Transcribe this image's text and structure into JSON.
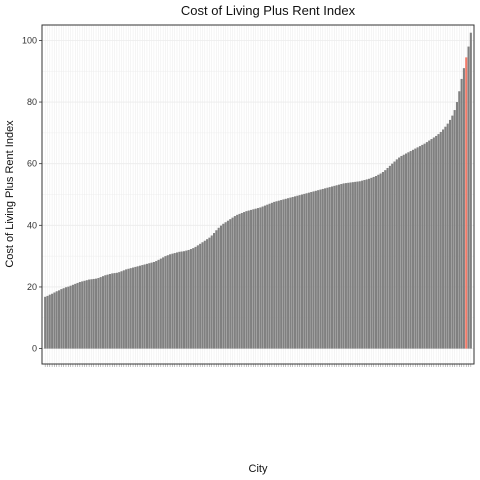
{
  "chart_data": {
    "type": "bar",
    "title": "Cost of Living Plus Rent Index",
    "xlabel": "City",
    "ylabel": "Cost of Living Plus Rent Index",
    "ylim": [
      -5,
      105
    ],
    "yticks": [
      0,
      20,
      40,
      60,
      80,
      100
    ],
    "grid": true,
    "legend": "none",
    "highlight_index": 182,
    "colors": {
      "bar": "#808080",
      "highlight": "#f27b6a",
      "grid": "#ebebeb",
      "panel_border": "#333333"
    },
    "values": [
      16.8,
      17.1,
      17.5,
      17.8,
      18.2,
      18.6,
      18.9,
      19.3,
      19.6,
      19.9,
      20.1,
      20.4,
      20.7,
      21.0,
      21.3,
      21.6,
      21.8,
      22.0,
      22.2,
      22.4,
      22.5,
      22.6,
      22.7,
      22.9,
      23.2,
      23.5,
      23.8,
      24.0,
      24.2,
      24.4,
      24.5,
      24.6,
      24.8,
      25.1,
      25.4,
      25.7,
      25.9,
      26.1,
      26.3,
      26.5,
      26.7,
      26.9,
      27.1,
      27.3,
      27.5,
      27.7,
      27.9,
      28.1,
      28.4,
      28.8,
      29.2,
      29.6,
      30.0,
      30.3,
      30.6,
      30.8,
      31.0,
      31.2,
      31.4,
      31.5,
      31.6,
      31.8,
      32.0,
      32.3,
      32.6,
      33.0,
      33.5,
      34.0,
      34.5,
      35.0,
      35.5,
      36.0,
      36.7,
      37.5,
      38.4,
      39.2,
      39.9,
      40.5,
      41.0,
      41.5,
      42.0,
      42.5,
      43.0,
      43.4,
      43.7,
      44.0,
      44.3,
      44.6,
      44.8,
      45.0,
      45.2,
      45.4,
      45.6,
      45.8,
      46.1,
      46.4,
      46.7,
      47.0,
      47.3,
      47.6,
      47.8,
      48.0,
      48.2,
      48.4,
      48.6,
      48.8,
      49.0,
      49.2,
      49.4,
      49.6,
      49.8,
      50.0,
      50.2,
      50.4,
      50.6,
      50.8,
      51.0,
      51.2,
      51.4,
      51.6,
      51.8,
      52.0,
      52.2,
      52.4,
      52.6,
      52.8,
      53.0,
      53.2,
      53.4,
      53.6,
      53.7,
      53.8,
      53.9,
      54.0,
      54.1,
      54.2,
      54.3,
      54.5,
      54.7,
      54.9,
      55.1,
      55.4,
      55.7,
      56.0,
      56.4,
      56.8,
      57.3,
      57.9,
      58.6,
      59.3,
      60.0,
      60.7,
      61.4,
      62.0,
      62.5,
      62.9,
      63.3,
      63.7,
      64.1,
      64.5,
      64.9,
      65.3,
      65.7,
      66.1,
      66.5,
      67.0,
      67.5,
      68.0,
      68.5,
      69.0,
      69.6,
      70.3,
      71.1,
      72.0,
      73.0,
      74.2,
      75.6,
      77.4,
      80.0,
      83.5,
      87.5,
      91.0,
      94.5,
      98.0,
      102.5
    ]
  }
}
